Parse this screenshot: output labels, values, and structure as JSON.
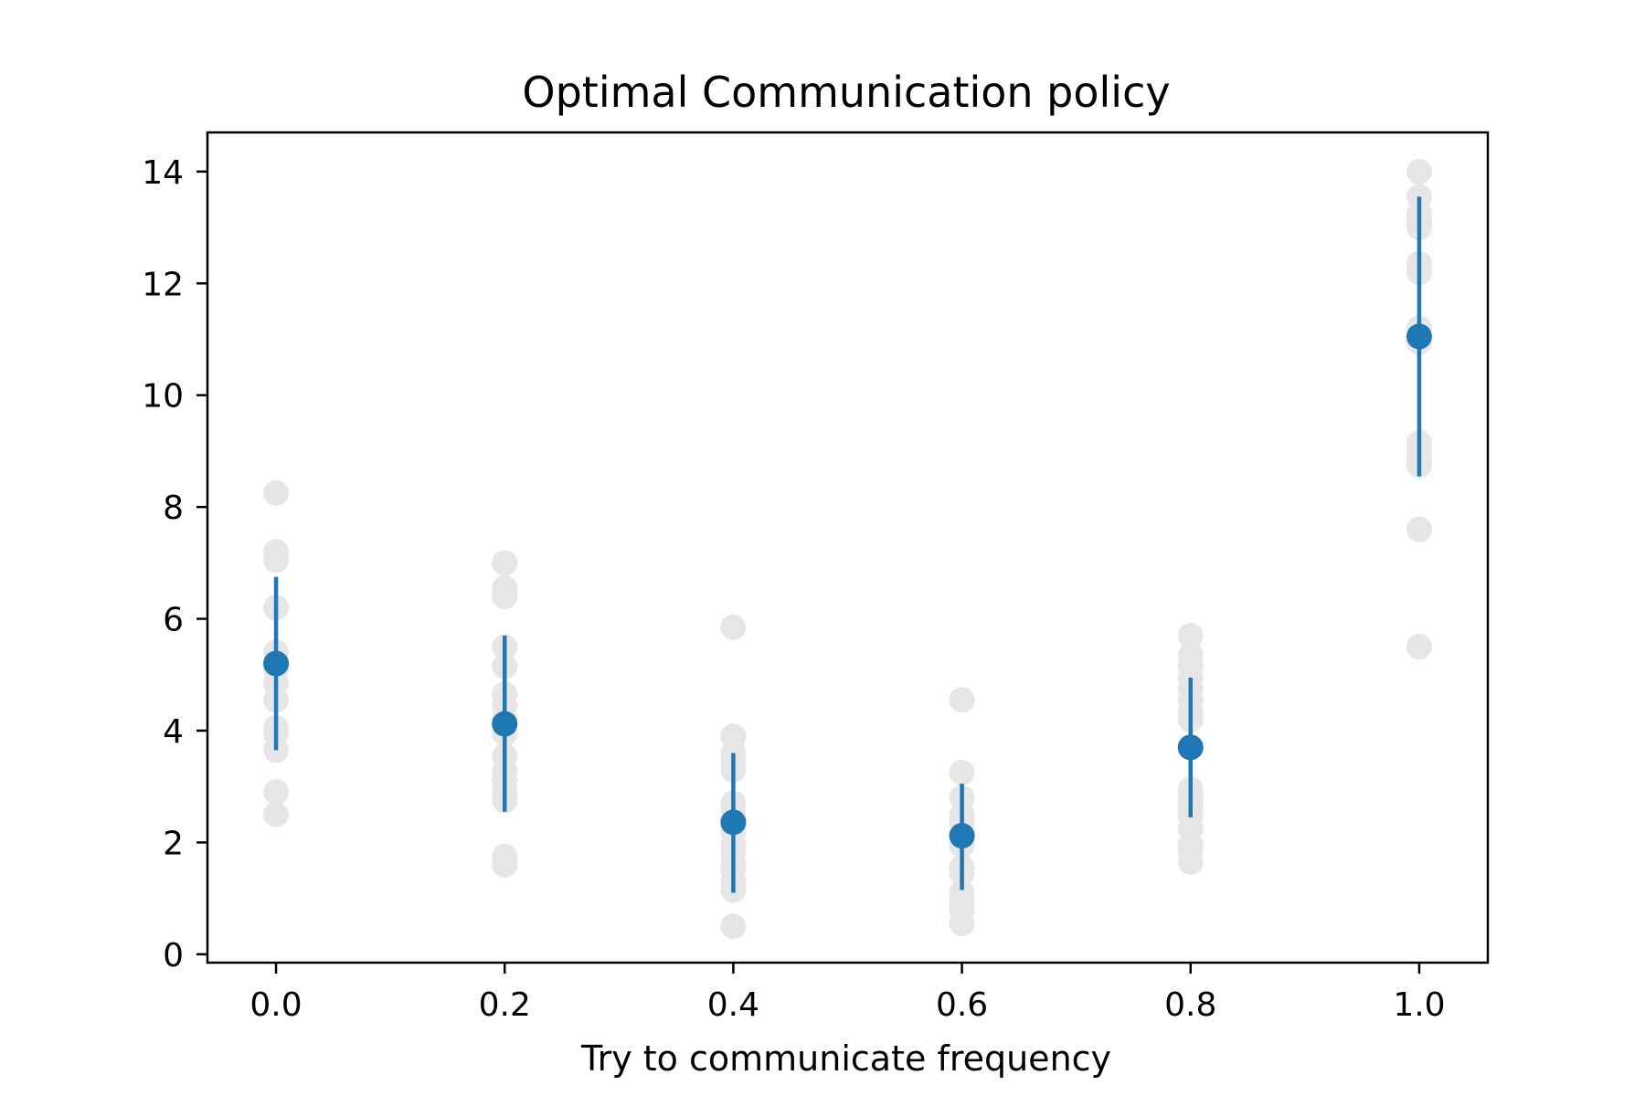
{
  "chart_data": {
    "type": "scatter",
    "title": "Optimal Communication policy",
    "xlabel": "Try to communicate frequency",
    "ylabel": "",
    "xlim": [
      -0.06,
      1.06
    ],
    "ylim": [
      -0.15,
      14.7
    ],
    "x_ticks": [
      "0.0",
      "0.2",
      "0.4",
      "0.6",
      "0.8",
      "1.0"
    ],
    "x_tick_values": [
      0.0,
      0.2,
      0.4,
      0.6,
      0.8,
      1.0
    ],
    "y_ticks": [
      "0",
      "2",
      "4",
      "6",
      "8",
      "10",
      "12",
      "14"
    ],
    "y_tick_values": [
      0,
      2,
      4,
      6,
      8,
      10,
      12,
      14
    ],
    "grid": false,
    "legend": "none",
    "colors": {
      "raw_points": "#e6e6e6",
      "mean": "#1f77b4",
      "axes": "#000000"
    },
    "raw_points": [
      {
        "x": 0.0,
        "values": [
          8.25,
          7.2,
          7.05,
          6.2,
          5.4,
          5.1,
          4.85,
          4.55,
          4.05,
          3.95,
          3.65,
          2.9,
          2.5
        ]
      },
      {
        "x": 0.2,
        "values": [
          7.0,
          6.55,
          6.4,
          5.5,
          5.15,
          4.65,
          4.45,
          4.2,
          3.95,
          3.55,
          3.3,
          3.1,
          2.9,
          2.75,
          1.75,
          1.6
        ]
      },
      {
        "x": 0.4,
        "values": [
          5.85,
          3.9,
          3.6,
          3.45,
          3.3,
          2.7,
          2.55,
          2.4,
          2.2,
          1.95,
          1.8,
          1.6,
          1.5,
          1.3,
          1.15,
          0.5
        ]
      },
      {
        "x": 0.6,
        "values": [
          4.55,
          3.25,
          2.8,
          2.5,
          2.35,
          2.15,
          1.95,
          1.55,
          1.45,
          1.1,
          0.95,
          0.8,
          0.55
        ]
      },
      {
        "x": 0.8,
        "values": [
          5.7,
          5.35,
          5.15,
          4.95,
          4.75,
          4.55,
          4.35,
          4.2,
          3.7,
          2.95,
          2.8,
          2.7,
          2.6,
          2.5,
          2.25,
          1.95,
          1.85,
          1.65
        ]
      },
      {
        "x": 1.0,
        "values": [
          14.0,
          13.55,
          13.25,
          13.1,
          13.0,
          12.35,
          12.2,
          11.2,
          10.95,
          9.15,
          9.0,
          8.85,
          8.75,
          7.6,
          5.5
        ]
      }
    ],
    "series": [
      {
        "x": [
          0.0,
          0.2,
          0.4,
          0.6,
          0.8,
          1.0
        ],
        "mean": [
          5.2,
          4.12,
          2.36,
          2.12,
          3.7,
          11.05
        ],
        "lower": [
          3.65,
          2.55,
          1.1,
          1.15,
          2.45,
          8.55
        ],
        "upper": [
          6.75,
          5.7,
          3.6,
          3.05,
          4.95,
          13.55
        ]
      }
    ]
  }
}
